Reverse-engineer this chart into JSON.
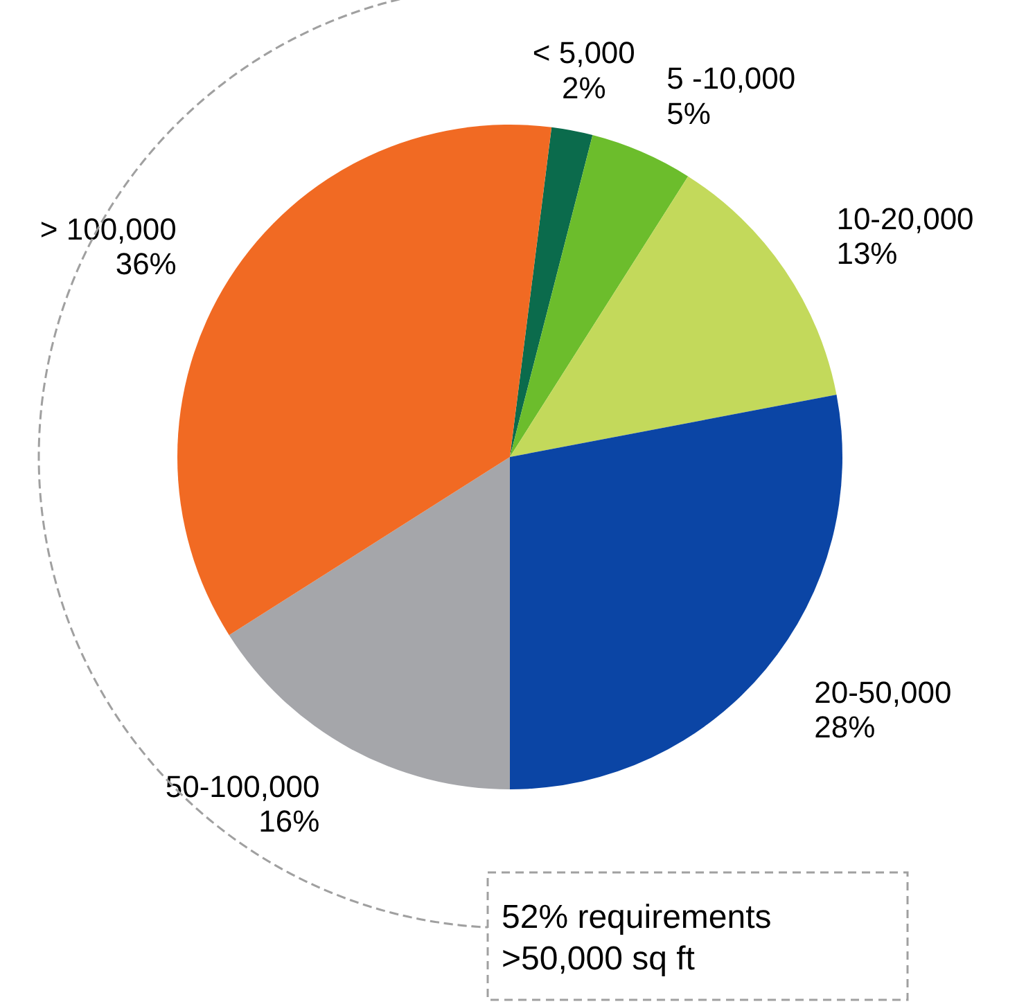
{
  "chart_data": {
    "type": "pie",
    "categories": [
      "< 5,000",
      "5 -10,000",
      "10-20,000",
      "20-50,000",
      "50-100,000",
      "> 100,000"
    ],
    "values": [
      2,
      5,
      13,
      28,
      16,
      36
    ],
    "value_labels": [
      "2%",
      "5%",
      "13%",
      "28%",
      "16%",
      "36%"
    ],
    "colors": [
      "#0b6b4c",
      "#6cbd2c",
      "#c3d95b",
      "#0b45a5",
      "#a5a6aa",
      "#f16a23"
    ],
    "annotations": [
      "52% requirements\n>50,000 sq ft"
    ]
  }
}
